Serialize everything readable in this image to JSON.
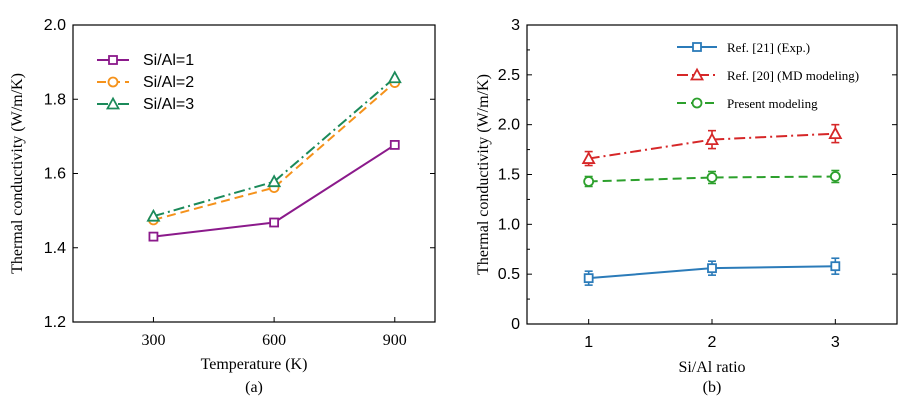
{
  "chart_data": [
    {
      "type": "line",
      "panel_label": "(a)",
      "xlabel": "Temperature (K)",
      "ylabel": "Thermal conductivity (W/m/K)",
      "x": [
        300,
        600,
        900
      ],
      "xticks": [
        "300",
        "600",
        "900"
      ],
      "xlim": [
        100,
        1000
      ],
      "yticks": [
        "1.2",
        "1.4",
        "1.6",
        "1.8",
        "2.0"
      ],
      "ylim": [
        1.2,
        2.0
      ],
      "series": [
        {
          "name": "Si/Al=1",
          "values": [
            1.43,
            1.468,
            1.677
          ],
          "color": "#8B1A8B",
          "marker": "square",
          "dash": "solid"
        },
        {
          "name": "Si/Al=2",
          "values": [
            1.475,
            1.562,
            1.845
          ],
          "color": "#F5921B",
          "marker": "circle",
          "dash": "dash"
        },
        {
          "name": "Si/Al=3",
          "values": [
            1.485,
            1.578,
            1.858
          ],
          "color": "#1B8A5A",
          "marker": "triangle",
          "dash": "dashdot"
        }
      ]
    },
    {
      "type": "line",
      "panel_label": "(b)",
      "xlabel": "Si/Al ratio",
      "ylabel": "Thermal conductivity (W/m/K)",
      "x": [
        1,
        2,
        3
      ],
      "xticks": [
        "1",
        "2",
        "3"
      ],
      "xlim": [
        0.5,
        3.5
      ],
      "yticks": [
        "0",
        "0.5",
        "1.0",
        "1.5",
        "2.0",
        "2.5",
        "3"
      ],
      "ylim": [
        0,
        3
      ],
      "series": [
        {
          "name": "Ref. [21] (Exp.)",
          "values": [
            0.46,
            0.56,
            0.58
          ],
          "errors": [
            0.07,
            0.07,
            0.08
          ],
          "color": "#2B7BB9",
          "marker": "square",
          "dash": "solid"
        },
        {
          "name": "Ref. [20] (MD modeling)",
          "values": [
            1.66,
            1.85,
            1.91
          ],
          "errors": [
            0.07,
            0.09,
            0.09
          ],
          "color": "#D62728",
          "marker": "triangle",
          "dash": "dashdot"
        },
        {
          "name": "Present modeling",
          "values": [
            1.43,
            1.47,
            1.48
          ],
          "errors": [
            0.05,
            0.06,
            0.06
          ],
          "color": "#2CA02C",
          "marker": "circle",
          "dash": "dash"
        }
      ]
    }
  ]
}
